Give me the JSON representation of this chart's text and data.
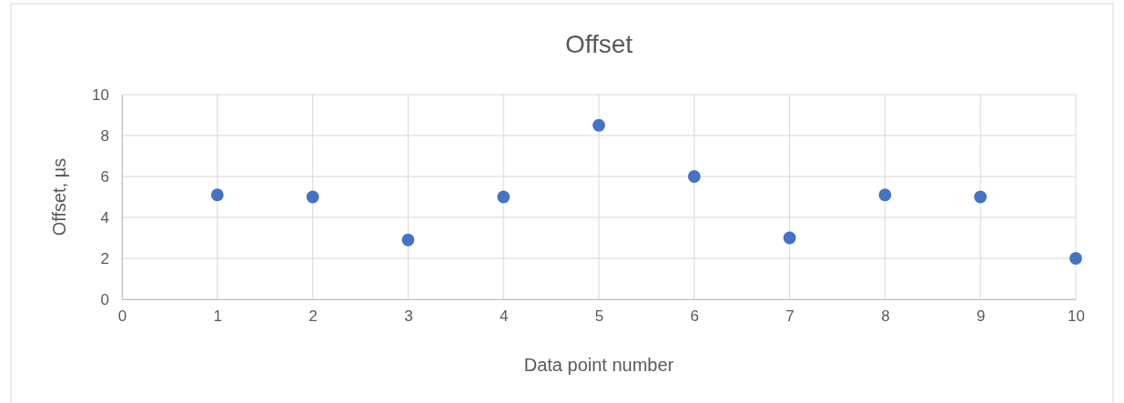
{
  "chart_data": {
    "type": "scatter",
    "title": "Offset",
    "xlabel": "Data point number",
    "ylabel": "Offset, µs",
    "x": [
      1,
      2,
      3,
      4,
      5,
      6,
      7,
      8,
      9,
      10
    ],
    "series": [
      {
        "color": "#4472c4",
        "values": [
          5.1,
          5.0,
          2.9,
          5.0,
          8.5,
          6.0,
          3.0,
          5.1,
          5.0,
          2.0
        ]
      }
    ],
    "xlim": [
      0,
      10
    ],
    "xticks": [
      0,
      1,
      2,
      3,
      4,
      5,
      6,
      7,
      8,
      9,
      10
    ],
    "ylim": [
      0,
      10
    ],
    "yticks": [
      0,
      2,
      4,
      6,
      8,
      10
    ],
    "grid": true,
    "marker": "circle"
  }
}
